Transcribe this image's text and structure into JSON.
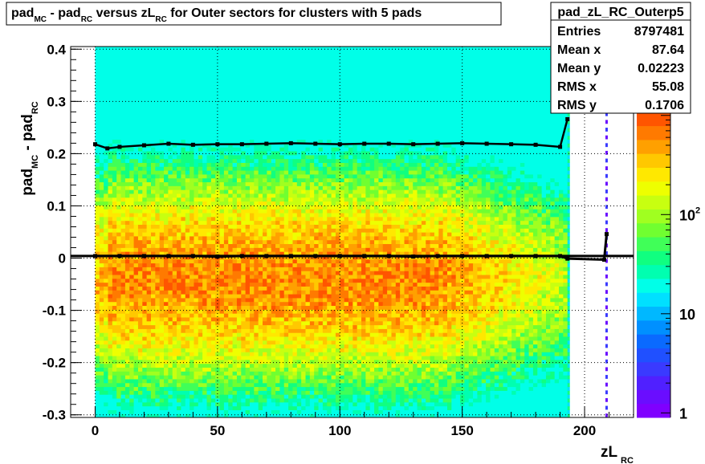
{
  "chart_data": {
    "type": "heatmap",
    "title": {
      "parts": [
        {
          "text": "pad",
          "sub": false
        },
        {
          "text": "MC",
          "sub": true
        },
        {
          "text": " - pad",
          "sub": false
        },
        {
          "text": "RC",
          "sub": true
        },
        {
          "text": " versus zL",
          "sub": false
        },
        {
          "text": "RC",
          "sub": true
        },
        {
          "text": " for Outer sectors for clusters with 5 pads",
          "sub": false
        }
      ]
    },
    "xlabel": {
      "main": "zL",
      "sub": "RC"
    },
    "ylabel": {
      "parts": [
        {
          "text": "pad",
          "sub": false
        },
        {
          "text": "MC",
          "sub": true
        },
        {
          "text": " - pad",
          "sub": false
        },
        {
          "text": "RC",
          "sub": true
        }
      ]
    },
    "xlim": [
      -10,
      220
    ],
    "ylim": [
      -0.305,
      0.405
    ],
    "x_ticks": [
      0,
      50,
      100,
      150,
      200
    ],
    "y_ticks": [
      -0.3,
      -0.2,
      -0.1,
      0,
      0.1,
      0.2,
      0.3,
      0.4
    ],
    "x_tick_labels": [
      "0",
      "50",
      "100",
      "150",
      "200"
    ],
    "y_tick_labels": [
      "-0.3",
      "-0.2",
      "-0.1",
      "0",
      "0.1",
      "0.2",
      "0.3",
      "0.4"
    ],
    "grid": true,
    "colorbar": {
      "scale": "log",
      "range": [
        0.9,
        1500
      ],
      "ticks": [
        1,
        10,
        100
      ],
      "tick_labels": [
        {
          "base": "1",
          "exp": ""
        },
        {
          "base": "10",
          "exp": ""
        },
        {
          "base": "10",
          "exp": "2"
        }
      ],
      "colors": [
        "#7f00ff",
        "#6a0dff",
        "#5020ff",
        "#3a3aff",
        "#2050ff",
        "#0a6aff",
        "#0090ff",
        "#00b8ff",
        "#00e0ff",
        "#00ffe8",
        "#00ffb0",
        "#10ff80",
        "#40ff58",
        "#70ff30",
        "#a0ff20",
        "#c8ff10",
        "#eeff00",
        "#ffe800",
        "#ffc800",
        "#ffa000",
        "#ff7a00",
        "#ff5500",
        "#ff2a00"
      ]
    },
    "series": [
      {
        "name": "profile mean",
        "x": [
          0,
          10,
          20,
          30,
          40,
          50,
          60,
          70,
          80,
          90,
          100,
          110,
          120,
          130,
          140,
          150,
          160,
          170,
          180,
          190,
          193,
          208,
          209
        ],
        "y": [
          0.004,
          0.004,
          0.004,
          0.004,
          0.004,
          0.003,
          0.004,
          0.004,
          0.004,
          0.004,
          0.004,
          0.004,
          0.004,
          0.003,
          0.004,
          0.004,
          0.004,
          0.004,
          0.004,
          0.004,
          -0.001,
          -0.003,
          0.046
        ]
      },
      {
        "name": "profile rms",
        "x": [
          0,
          5,
          10,
          20,
          30,
          40,
          50,
          60,
          70,
          80,
          90,
          100,
          110,
          120,
          130,
          140,
          150,
          160,
          170,
          180,
          190,
          193
        ],
        "y": [
          0.218,
          0.21,
          0.213,
          0.216,
          0.219,
          0.217,
          0.218,
          0.218,
          0.219,
          0.22,
          0.219,
          0.218,
          0.219,
          0.219,
          0.218,
          0.219,
          0.22,
          0.219,
          0.218,
          0.217,
          0.213,
          0.266
        ]
      }
    ],
    "band_structure": {
      "x_start": 0,
      "x_end": 193,
      "isolated_x": 208.5,
      "note": "density highest near y=0 for x<150, decreasing to edges"
    }
  },
  "stats_box": {
    "name": "pad_zL_RC_Outerp5",
    "rows": [
      {
        "label": "Entries",
        "value": "8797481"
      },
      {
        "label": "Mean x",
        "value": "87.64"
      },
      {
        "label": "Mean y",
        "value": "0.02223"
      },
      {
        "label": "RMS x",
        "value": "55.08"
      },
      {
        "label": "RMS y",
        "value": "0.1706"
      }
    ]
  }
}
